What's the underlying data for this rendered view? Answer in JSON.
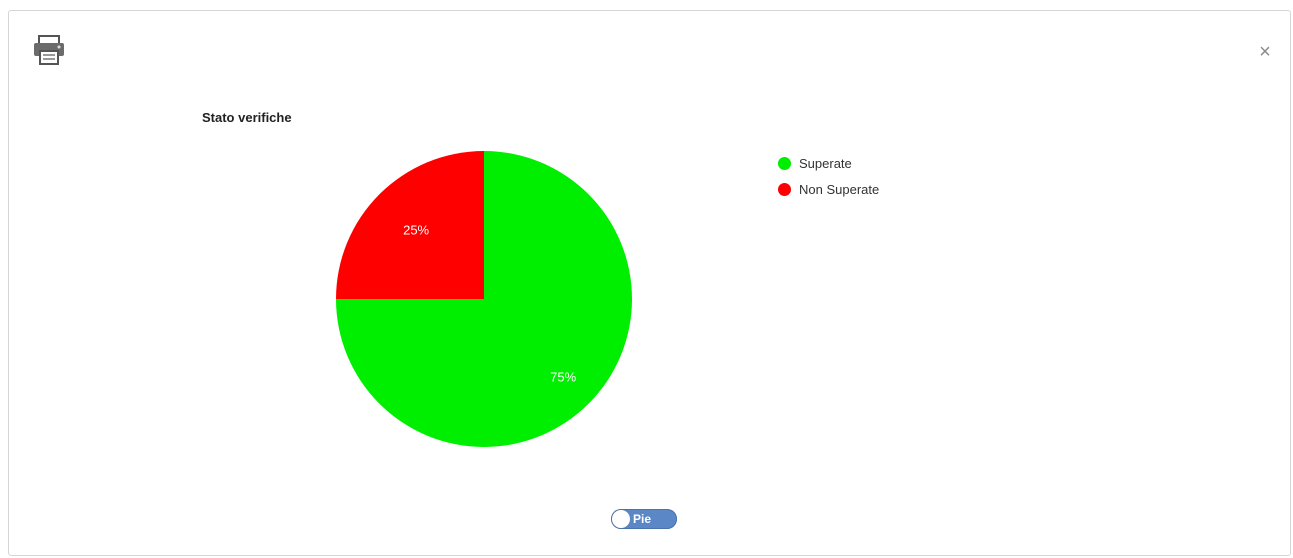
{
  "dialog": {
    "print_icon": "printer-icon",
    "close_label": "×"
  },
  "chart_data": {
    "type": "pie",
    "title": "Stato verifiche",
    "categories": [
      "Superate",
      "Non Superate"
    ],
    "values": [
      75,
      25
    ],
    "data_labels": [
      "75%",
      "25%"
    ],
    "colors": [
      "#00ee00",
      "#ff0000"
    ],
    "legend_placement": "right",
    "start_angle_deg": 0,
    "direction": "clockwise"
  },
  "toggle": {
    "label": "Pie"
  }
}
